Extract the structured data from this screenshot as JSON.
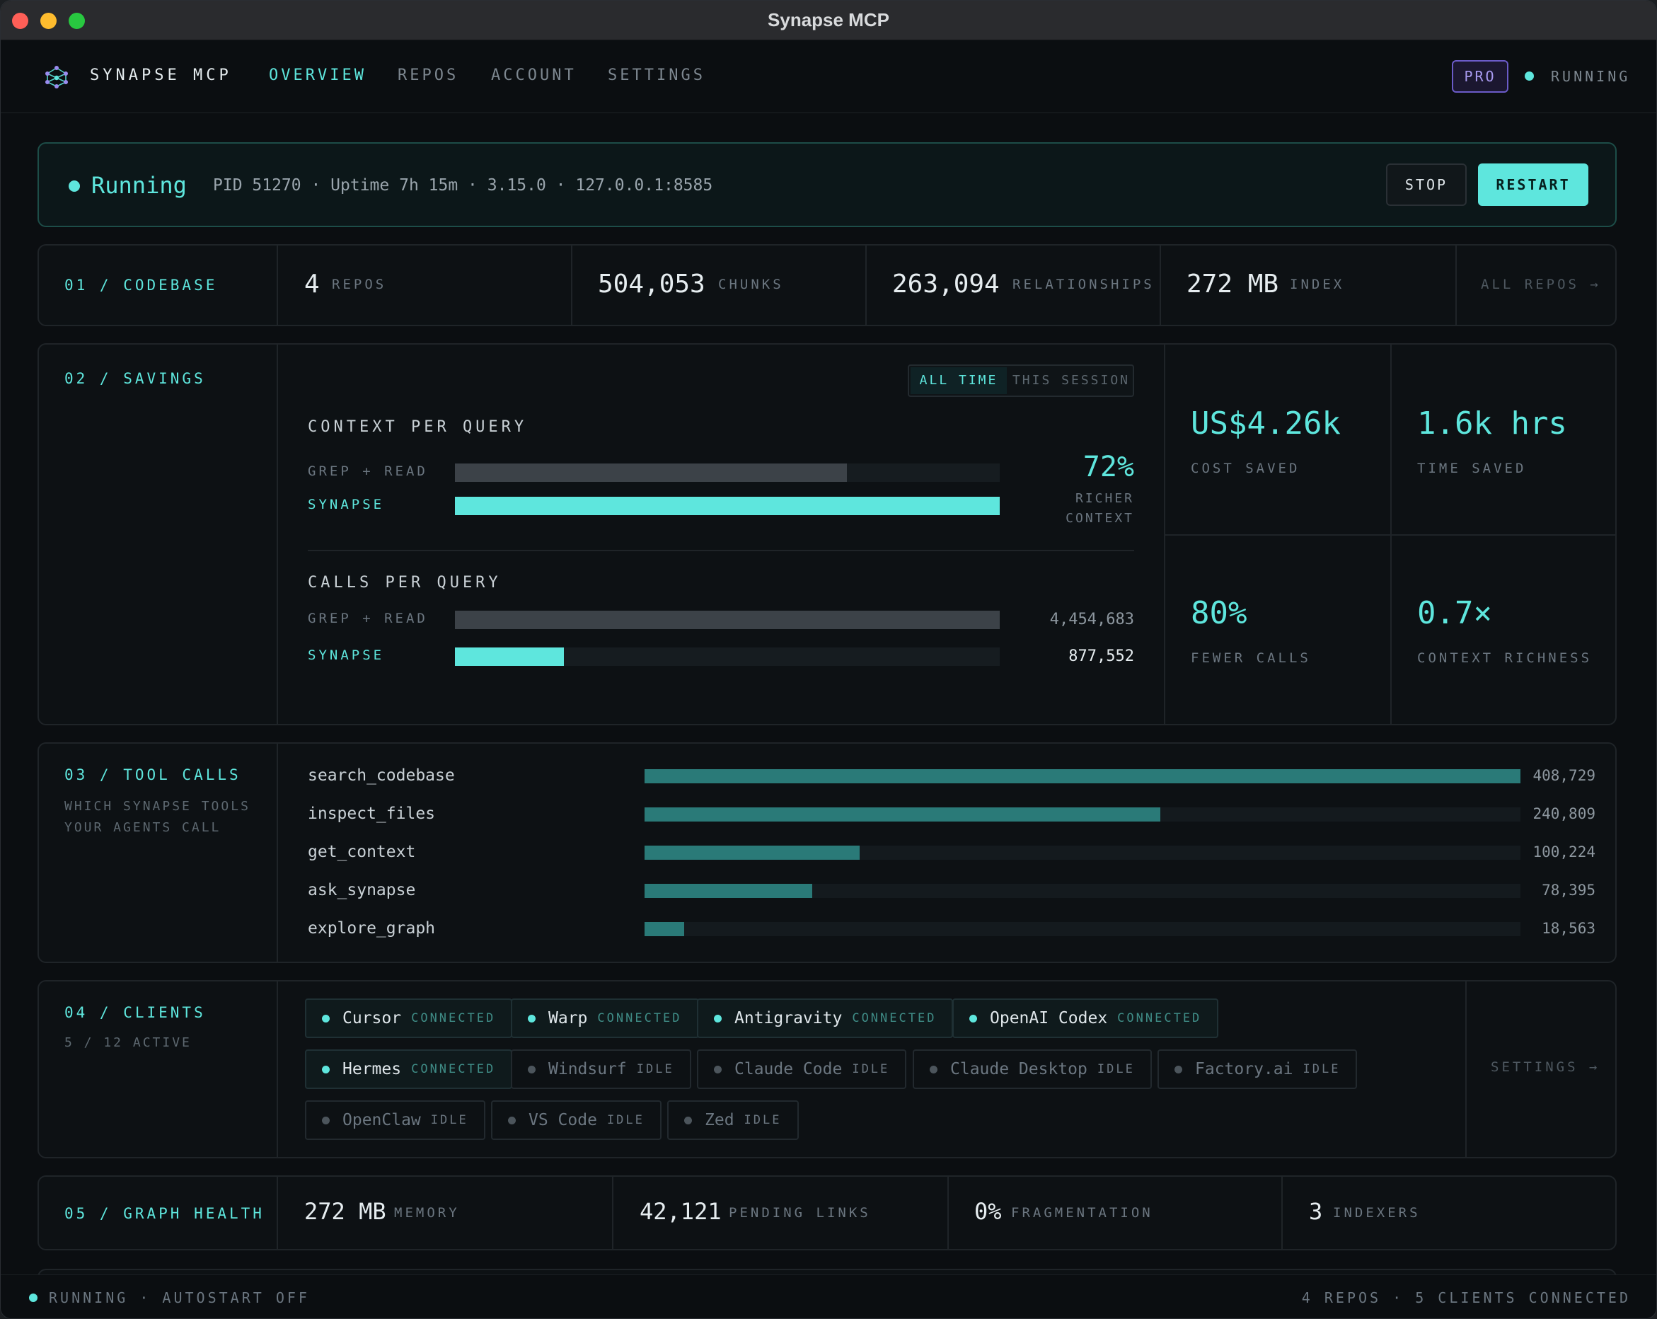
{
  "window": {
    "title": "Synapse MCP"
  },
  "nav": {
    "brand": "SYNAPSE MCP",
    "tabs": [
      "OVERVIEW",
      "REPOS",
      "ACCOUNT",
      "SETTINGS"
    ],
    "active_tab": "OVERVIEW",
    "plan_badge": "PRO",
    "status": "RUNNING",
    "logo_icon": "synapse-network-logo"
  },
  "banner": {
    "status": "Running",
    "meta": "PID 51270 · Uptime 7h 15m · 3.15.0 · 127.0.0.1:8585",
    "stop_label": "STOP",
    "restart_label": "RESTART"
  },
  "codebase": {
    "label": "01 / CODEBASE",
    "stats": [
      {
        "value": "4",
        "unit": "REPOS"
      },
      {
        "value": "504,053",
        "unit": "CHUNKS"
      },
      {
        "value": "263,094",
        "unit": "RELATIONSHIPS"
      },
      {
        "value": "272 MB",
        "unit": "INDEX"
      }
    ],
    "link": "ALL REPOS →"
  },
  "savings": {
    "label": "02 / SAVINGS",
    "toggle": {
      "on": "ALL TIME",
      "off": "THIS SESSION"
    },
    "context": {
      "title": "CONTEXT PER QUERY",
      "rows": [
        {
          "label": "GREP + READ",
          "fill": 0.72
        },
        {
          "label": "SYNAPSE",
          "fill": 1.0
        }
      ],
      "percent": "72%",
      "caption_1": "RICHER",
      "caption_2": "CONTEXT"
    },
    "calls": {
      "title": "CALLS PER QUERY",
      "rows": [
        {
          "label": "GREP + READ",
          "value": "4,454,683",
          "fill": 1.0
        },
        {
          "label": "SYNAPSE",
          "value": "877,552",
          "fill": 0.2
        }
      ]
    },
    "kpis": [
      {
        "value": "US$4.26k",
        "label": "COST SAVED"
      },
      {
        "value": "1.6k hrs",
        "label": "TIME SAVED"
      },
      {
        "value": "80%",
        "label": "FEWER CALLS"
      },
      {
        "value": "0.7×",
        "label": "CONTEXT RICHNESS"
      }
    ]
  },
  "tool_calls": {
    "label": "03 / TOOL CALLS",
    "sub_1": "WHICH SYNAPSE TOOLS",
    "sub_2": "YOUR AGENTS CALL",
    "tools": [
      {
        "name": "search_codebase",
        "count": "408,729",
        "value": 408729
      },
      {
        "name": "inspect_files",
        "count": "240,809",
        "value": 240809
      },
      {
        "name": "get_context",
        "count": "100,224",
        "value": 100224
      },
      {
        "name": "ask_synapse",
        "count": "78,395",
        "value": 78395
      },
      {
        "name": "explore_graph",
        "count": "18,563",
        "value": 18563
      }
    ]
  },
  "clients": {
    "label": "04 / CLIENTS",
    "sub": "5 / 12 ACTIVE",
    "settings_link": "SETTINGS →",
    "items": [
      {
        "name": "Cursor",
        "state": "CONNECTED"
      },
      {
        "name": "Warp",
        "state": "CONNECTED"
      },
      {
        "name": "Antigravity",
        "state": "CONNECTED"
      },
      {
        "name": "OpenAI Codex",
        "state": "CONNECTED"
      },
      {
        "name": "Hermes",
        "state": "CONNECTED"
      },
      {
        "name": "Windsurf",
        "state": "IDLE"
      },
      {
        "name": "Claude Code",
        "state": "IDLE"
      },
      {
        "name": "Claude Desktop",
        "state": "IDLE"
      },
      {
        "name": "Factory.ai",
        "state": "IDLE"
      },
      {
        "name": "OpenClaw",
        "state": "IDLE"
      },
      {
        "name": "VS Code",
        "state": "IDLE"
      },
      {
        "name": "Zed",
        "state": "IDLE"
      }
    ]
  },
  "graph_health": {
    "label": "05 / GRAPH HEALTH",
    "stats": [
      {
        "value": "272 MB",
        "unit": "MEMORY"
      },
      {
        "value": "42,121",
        "unit": "PENDING LINKS"
      },
      {
        "value": "0%",
        "unit": "FRAGMENTATION"
      },
      {
        "value": "3",
        "unit": "INDEXERS"
      }
    ]
  },
  "statusbar": {
    "left": "RUNNING · AUTOSTART OFF",
    "right": "4 REPOS · 5 CLIENTS CONNECTED"
  },
  "colors": {
    "accent": "#5ee6dd",
    "background": "#0b0e11",
    "pro_badge": "#6b5bc8",
    "tool_bar": "#2a7a78"
  }
}
